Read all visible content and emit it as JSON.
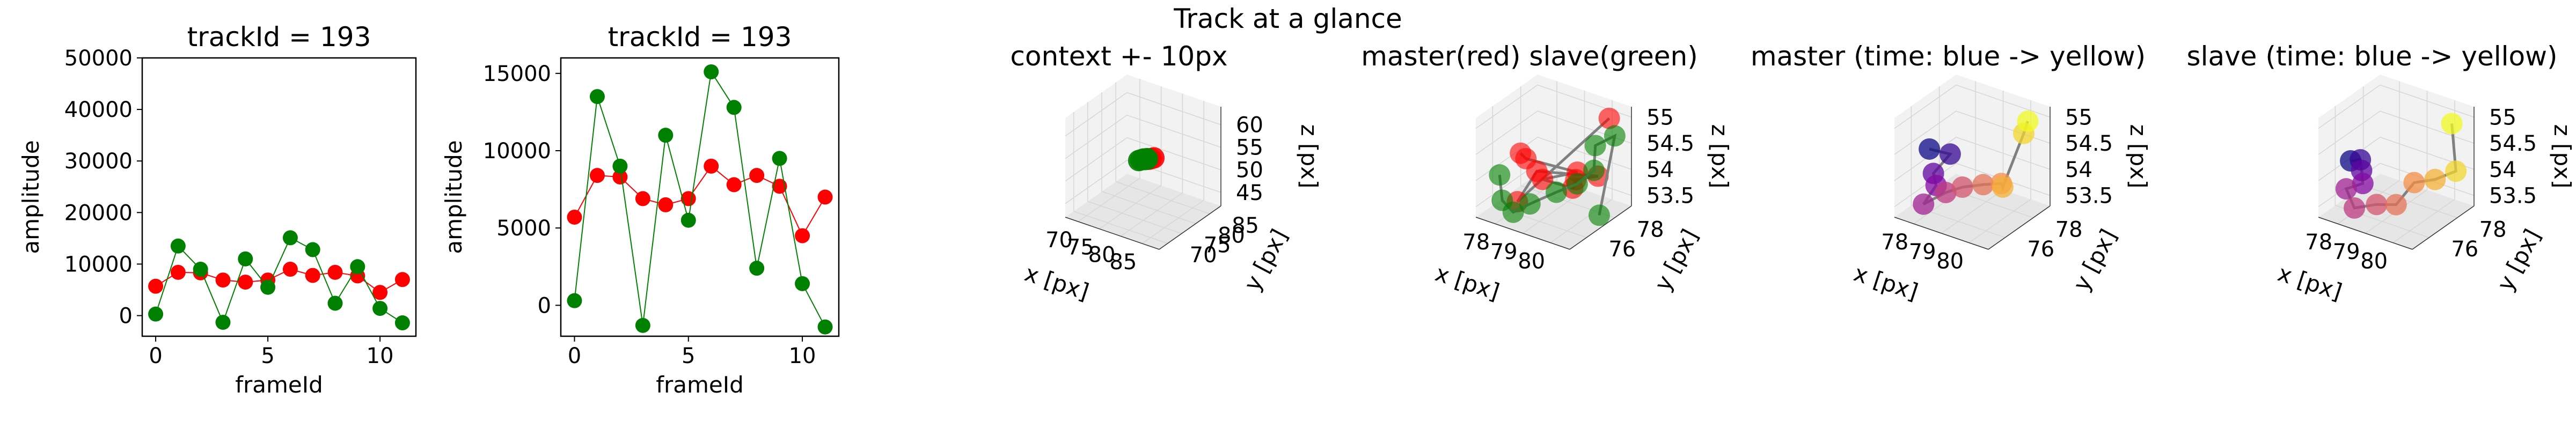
{
  "figure": {
    "suptitle": "Track at a glance"
  },
  "colors": {
    "master": "#ff0000",
    "slave": "#008000",
    "path": "#808080",
    "pane_light": "#f2f2f2",
    "pane_dark": "#e6e6e6",
    "grid": "#d6d6d6"
  },
  "chart_data": [
    {
      "type": "line",
      "title": "trackId = 193",
      "xlabel": "frameId",
      "ylabel": "amplitude",
      "xlim": [
        -0.6,
        11.6
      ],
      "ylim": [
        -4000,
        50000
      ],
      "xticks": [
        0,
        5,
        10
      ],
      "yticks": [
        0,
        10000,
        20000,
        30000,
        40000,
        50000
      ],
      "x": [
        0,
        1,
        2,
        3,
        4,
        5,
        6,
        7,
        8,
        9,
        10,
        11
      ],
      "series": [
        {
          "color": "#ff0000",
          "values": [
            5700,
            8400,
            8300,
            6900,
            6500,
            6900,
            9000,
            7800,
            8400,
            7700,
            4500,
            7000
          ]
        },
        {
          "color": "#008000",
          "values": [
            300,
            13500,
            9000,
            -1300,
            11000,
            5500,
            15100,
            12800,
            2400,
            9500,
            1400,
            -1400
          ]
        }
      ]
    },
    {
      "type": "line",
      "title": "trackId = 193",
      "xlabel": "frameId",
      "ylabel": "amplitude",
      "xlim": [
        -0.6,
        11.6
      ],
      "ylim": [
        -2000,
        16000
      ],
      "xticks": [
        0,
        5,
        10
      ],
      "yticks": [
        0,
        5000,
        10000,
        15000
      ],
      "x": [
        0,
        1,
        2,
        3,
        4,
        5,
        6,
        7,
        8,
        9,
        10,
        11
      ],
      "series": [
        {
          "color": "#ff0000",
          "values": [
            5700,
            8400,
            8300,
            6900,
            6500,
            6900,
            9000,
            7800,
            8400,
            7700,
            4500,
            7000
          ]
        },
        {
          "color": "#008000",
          "values": [
            300,
            13500,
            9000,
            -1300,
            11000,
            5500,
            15100,
            12800,
            2400,
            9500,
            1400,
            -1400
          ]
        }
      ]
    },
    {
      "type": "scatter3d",
      "title": "context +- 10px",
      "xlabel": "x [px]",
      "ylabel": "y [px]",
      "zlabel": "z [px]",
      "xlim": [
        67,
        89
      ],
      "ylim": [
        67,
        89
      ],
      "zlim": [
        42,
        64
      ],
      "xticks": [
        70,
        75,
        80,
        85
      ],
      "yticks": [
        70,
        75,
        80,
        85
      ],
      "zticks": [
        45,
        50,
        55,
        60
      ],
      "series": [
        {
          "name": "master",
          "color": "#ff0000",
          "points": [
            [
              79.5,
              78.5,
              54.0
            ],
            [
              80.0,
              78.8,
              54.2
            ],
            [
              79.2,
              78.2,
              53.9
            ]
          ]
        },
        {
          "name": "slave",
          "color": "#008000",
          "points": [
            [
              77.8,
              77.5,
              53.6
            ],
            [
              78.2,
              77.8,
              53.8
            ],
            [
              78.5,
              78.0,
              53.7
            ],
            [
              77.5,
              77.2,
              53.5
            ],
            [
              78.8,
              78.2,
              53.9
            ],
            [
              79.0,
              78.0,
              54.0
            ]
          ]
        }
      ]
    },
    {
      "type": "scatter3d",
      "title": "master(red) slave(green)",
      "xlabel": "x [px]",
      "ylabel": "y [px]",
      "zlabel": "z [px]",
      "xlim": [
        77.3,
        80.7
      ],
      "ylim": [
        74.8,
        79.2
      ],
      "zlim": [
        53.3,
        55.2
      ],
      "xticks": [
        78,
        79,
        80
      ],
      "yticks": [
        76,
        78
      ],
      "zticks": [
        53.5,
        54.0,
        54.5,
        55.0
      ],
      "series": [
        {
          "name": "master",
          "color": "#ff0000",
          "points": [
            [
              77.8,
              77.0,
              54.2
            ],
            [
              78.3,
              76.4,
              54.3
            ],
            [
              79.3,
              78.1,
              53.9
            ],
            [
              78.7,
              76.8,
              53.9
            ],
            [
              80.1,
              76.2,
              54.1
            ],
            [
              79.7,
              77.2,
              54.0
            ],
            [
              80.3,
              77.6,
              54.1
            ],
            [
              79.0,
              75.8,
              54.3
            ],
            [
              78.5,
              75.4,
              53.7
            ],
            [
              80.2,
              78.6,
              55.0
            ]
          ]
        },
        {
          "name": "slave",
          "color": "#008000",
          "points": [
            [
              77.5,
              76.1,
              53.9
            ],
            [
              77.9,
              75.5,
              53.6
            ],
            [
              78.4,
              75.3,
              53.5
            ],
            [
              78.7,
              75.9,
              53.6
            ],
            [
              79.3,
              76.6,
              53.8
            ],
            [
              79.7,
              77.3,
              53.9
            ],
            [
              80.0,
              77.9,
              54.1
            ],
            [
              79.9,
              78.2,
              54.5
            ],
            [
              80.4,
              78.6,
              54.7
            ],
            [
              80.6,
              77.1,
              53.5
            ]
          ]
        }
      ]
    },
    {
      "type": "scatter3d",
      "title": "master (time: blue -> yellow)",
      "xlabel": "x [px]",
      "ylabel": "y [px]",
      "zlabel": "z [px]",
      "xlim": [
        77.3,
        80.7
      ],
      "ylim": [
        74.8,
        79.2
      ],
      "zlim": [
        53.3,
        55.2
      ],
      "xticks": [
        78,
        79,
        80
      ],
      "yticks": [
        76,
        78
      ],
      "zticks": [
        53.5,
        54.0,
        54.5,
        55.0
      ],
      "series": [
        {
          "name": "master",
          "colormap": "plasma",
          "points": [
            [
              77.6,
              76.7,
              54.3
            ],
            [
              78.1,
              77.2,
              54.2
            ],
            [
              78.0,
              76.2,
              54.0
            ],
            [
              78.3,
              75.8,
              53.9
            ],
            [
              78.1,
              75.3,
              53.6
            ],
            [
              78.6,
              75.9,
              53.8
            ],
            [
              79.0,
              76.3,
              53.9
            ],
            [
              79.6,
              76.6,
              54.0
            ],
            [
              80.0,
              77.1,
              54.0
            ],
            [
              79.8,
              77.6,
              53.8
            ],
            [
              79.9,
              78.9,
              54.6
            ],
            [
              80.3,
              78.4,
              55.0
            ]
          ]
        }
      ]
    },
    {
      "type": "scatter3d",
      "title": "slave (time: blue -> yellow)",
      "xlabel": "x [px]",
      "ylabel": "y [px]",
      "zlabel": "z [px]",
      "xlim": [
        77.3,
        80.7
      ],
      "ylim": [
        74.8,
        79.2
      ],
      "zlim": [
        53.3,
        55.2
      ],
      "xticks": [
        78,
        79,
        80
      ],
      "yticks": [
        76,
        78
      ],
      "zticks": [
        53.5,
        54.0,
        54.5,
        55.0
      ],
      "series": [
        {
          "name": "slave",
          "colormap": "plasma",
          "points": [
            [
              77.4,
              76.9,
              54.0
            ],
            [
              77.6,
              77.2,
              54.0
            ],
            [
              78.0,
              76.5,
              54.0
            ],
            [
              78.3,
              76.0,
              53.9
            ],
            [
              77.9,
              75.6,
              53.8
            ],
            [
              78.4,
              75.2,
              53.6
            ],
            [
              79.0,
              75.6,
              53.7
            ],
            [
              79.3,
              76.4,
              53.6
            ],
            [
              79.7,
              76.9,
              54.0
            ],
            [
              80.1,
              77.6,
              54.0
            ],
            [
              80.5,
              78.3,
              54.1
            ],
            [
              80.2,
              78.6,
              54.9
            ]
          ]
        }
      ]
    }
  ]
}
